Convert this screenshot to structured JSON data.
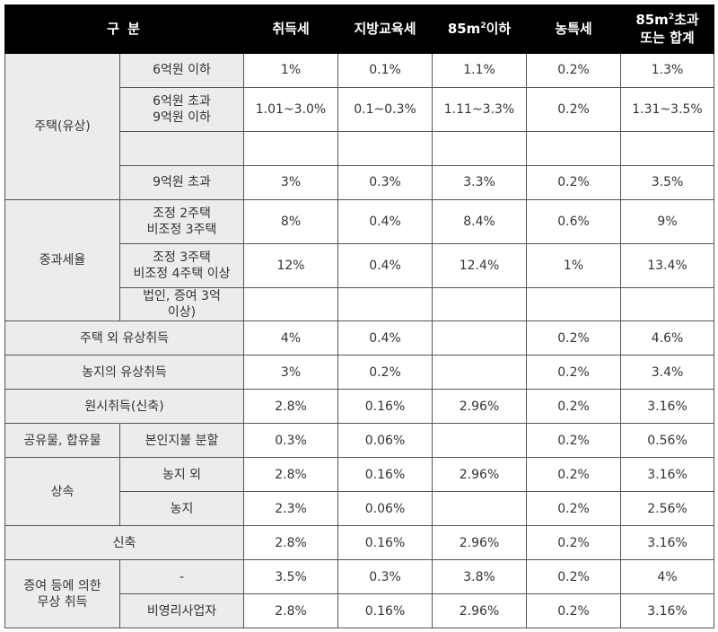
{
  "header": {
    "category": "구 분",
    "col1": "취득세",
    "col2": "지방교육세",
    "col3": "85㎡이하",
    "col4": "농특세",
    "col5": "85㎡초과\n또는 합계"
  },
  "groups": {
    "housing": "주택(유상)",
    "heavy": "중과세율",
    "inherit": "상속",
    "gift": "증여 등에 의한\n무상 취득"
  },
  "rows": [
    {
      "label": "6억원 이하",
      "values": [
        "1%",
        "0.1%",
        "1.1%",
        "0.2%",
        "1.3%"
      ]
    },
    {
      "label": "6억원 초과\n9억원 이하",
      "values": [
        "1.01~3.0%",
        "0.1~0.3%",
        "1.11~3.3%",
        "0.2%",
        "1.31~3.5%"
      ]
    },
    {
      "label": "",
      "values": [
        "",
        "",
        "",
        "",
        ""
      ]
    },
    {
      "label": "9억원 초과",
      "values": [
        "3%",
        "0.3%",
        "3.3%",
        "0.2%",
        "3.5%"
      ]
    },
    {
      "label": "조정 2주택\n비조정 3주택",
      "values": [
        "8%",
        "0.4%",
        "8.4%",
        "0.6%",
        "9%"
      ]
    },
    {
      "label": "조정 3주택\n비조정 4주택 이상",
      "values": [
        "12%",
        "0.4%",
        "12.4%",
        "1%",
        "13.4%"
      ]
    },
    {
      "label": "법인, 증여 3억\n이상)",
      "values": [
        "",
        "",
        "",
        "",
        ""
      ]
    },
    {
      "label": "주택 외 유상취득",
      "values": [
        "4%",
        "0.4%",
        "",
        "0.2%",
        "4.6%"
      ]
    },
    {
      "label": "농지의 유상취득",
      "values": [
        "3%",
        "0.2%",
        "",
        "0.2%",
        "3.4%"
      ]
    },
    {
      "label": "원시취득(신축)",
      "values": [
        "2.8%",
        "0.16%",
        "2.96%",
        "0.2%",
        "3.16%"
      ]
    },
    {
      "group": "공유물, 합유물",
      "label": "본인지불 분할",
      "values": [
        "0.3%",
        "0.06%",
        "",
        "0.2%",
        "0.56%"
      ]
    },
    {
      "label": "농지 외",
      "values": [
        "2.8%",
        "0.16%",
        "2.96%",
        "0.2%",
        "3.16%"
      ]
    },
    {
      "label": "농지",
      "values": [
        "2.3%",
        "0.06%",
        "",
        "0.2%",
        "2.56%"
      ]
    },
    {
      "label": "신축",
      "values": [
        "2.8%",
        "0.16%",
        "2.96%",
        "0.2%",
        "3.16%"
      ]
    },
    {
      "label": "-",
      "values": [
        "3.5%",
        "0.3%",
        "3.8%",
        "0.2%",
        "4%"
      ]
    },
    {
      "label": "비영리사업자",
      "values": [
        "2.8%",
        "0.16%",
        "2.96%",
        "0.2%",
        "3.16%"
      ]
    }
  ]
}
